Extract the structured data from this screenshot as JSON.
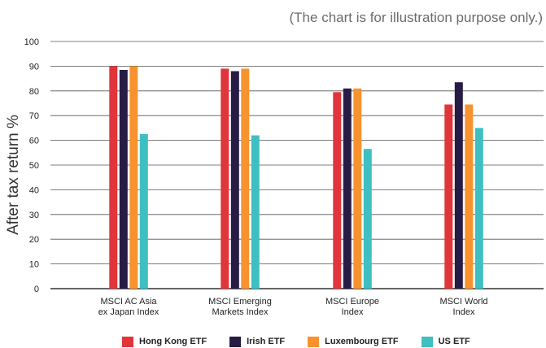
{
  "note": "(The chart is for illustration purpose only.)",
  "chart_data": {
    "type": "bar",
    "title": "",
    "xlabel": "",
    "ylabel": "After tax return %",
    "ylim": [
      0,
      100
    ],
    "yticks": [
      0,
      10,
      20,
      30,
      40,
      50,
      60,
      70,
      80,
      90,
      100
    ],
    "grid": true,
    "legend_position": "bottom",
    "categories": [
      [
        "MSCI AC Asia",
        "ex Japan Index"
      ],
      [
        "MSCI Emerging",
        "Markets Index"
      ],
      [
        "MSCI Europe",
        "Index"
      ],
      [
        "MSCI World",
        "Index"
      ]
    ],
    "series": [
      {
        "name": "Hong Kong ETF",
        "color": "#e0353b",
        "values": [
          90,
          89,
          79.5,
          74.5
        ]
      },
      {
        "name": "Irish ETF",
        "color": "#261c45",
        "values": [
          88.5,
          88,
          81,
          83.5
        ]
      },
      {
        "name": "Luxembourg ETF",
        "color": "#f7932f",
        "values": [
          90,
          89,
          81,
          74.5
        ]
      },
      {
        "name": "US ETF",
        "color": "#3fbfc1",
        "values": [
          62.5,
          62,
          56.5,
          65
        ]
      }
    ]
  }
}
